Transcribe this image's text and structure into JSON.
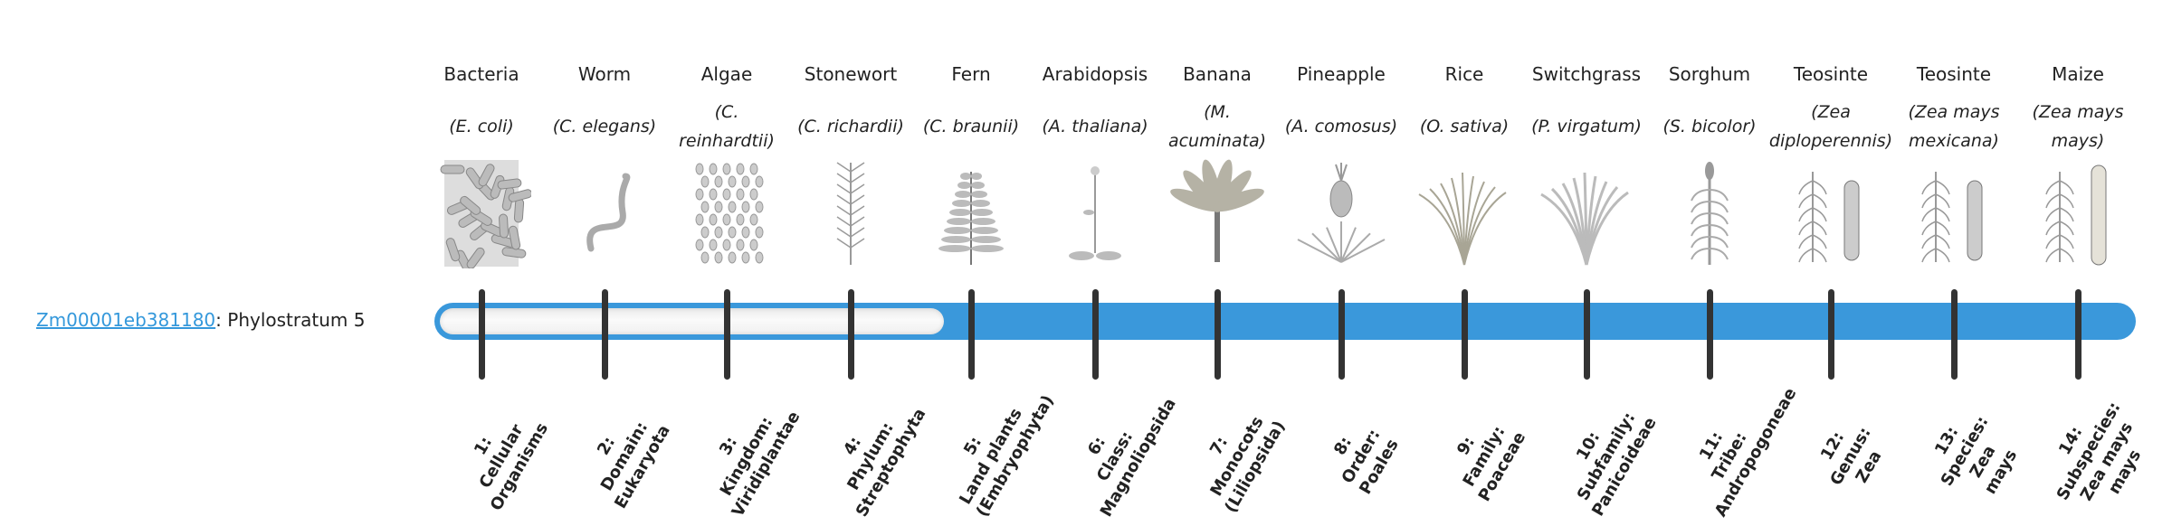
{
  "gene": {
    "id": "Zm00001eb381180",
    "separator": ":",
    "stratum_text": "Phylostratum 5",
    "stratum": 5
  },
  "colors": {
    "bar": "#3a98db",
    "link": "#3498db",
    "tick": "#333333"
  },
  "organisms": [
    {
      "common": "Bacteria",
      "sci": "(E. coli)",
      "icon": "bacteria-icon"
    },
    {
      "common": "Worm",
      "sci": "(C. elegans)",
      "icon": "worm-icon"
    },
    {
      "common": "Algae",
      "sci": "(C. reinhardtii)",
      "icon": "algae-icon"
    },
    {
      "common": "Stonewort",
      "sci": "(C. richardii)",
      "icon": "stonewort-icon"
    },
    {
      "common": "Fern",
      "sci": "(C. braunii)",
      "icon": "fern-icon"
    },
    {
      "common": "Arabidopsis",
      "sci": "(A. thaliana)",
      "icon": "arabidopsis-icon"
    },
    {
      "common": "Banana",
      "sci": "(M. acuminata)",
      "icon": "banana-icon"
    },
    {
      "common": "Pineapple",
      "sci": "(A. comosus)",
      "icon": "pineapple-icon"
    },
    {
      "common": "Rice",
      "sci": "(O. sativa)",
      "icon": "rice-icon"
    },
    {
      "common": "Switchgrass",
      "sci": "(P. virgatum)",
      "icon": "switchgrass-icon"
    },
    {
      "common": "Sorghum",
      "sci": "(S. bicolor)",
      "icon": "sorghum-icon"
    },
    {
      "common": "Teosinte",
      "sci": "(Zea diploperennis)",
      "icon": "teosinte-icon"
    },
    {
      "common": "Teosinte",
      "sci": "(Zea mays mexicana)",
      "icon": "teosinte-icon"
    },
    {
      "common": "Maize",
      "sci": "(Zea mays mays)",
      "icon": "maize-icon"
    }
  ],
  "strata": [
    [
      "1:",
      "Cellular",
      "Organisms"
    ],
    [
      "2:",
      "Domain:",
      "Eukaryota"
    ],
    [
      "3:",
      "Kingdom:",
      "Viridiplantae"
    ],
    [
      "4:",
      "Phylum:",
      "Streptophyta"
    ],
    [
      "5:",
      "Land plants",
      "(Embryophyta)"
    ],
    [
      "6:",
      "Class:",
      "Magnoliopsida"
    ],
    [
      "7:",
      "Monocots",
      "(Liliopsida)"
    ],
    [
      "8:",
      "Order:",
      "Poales"
    ],
    [
      "9:",
      "Family:",
      "Poaceae"
    ],
    [
      "10:",
      "Subfamily:",
      "Panicoideae"
    ],
    [
      "11:",
      "Tribe:",
      "Andropogoneae"
    ],
    [
      "12:",
      "Genus:",
      "Zea"
    ],
    [
      "13:",
      "Species:",
      "Zea",
      "mays"
    ],
    [
      "14:",
      "Subspecies:",
      "Zea mays",
      "mays"
    ]
  ]
}
